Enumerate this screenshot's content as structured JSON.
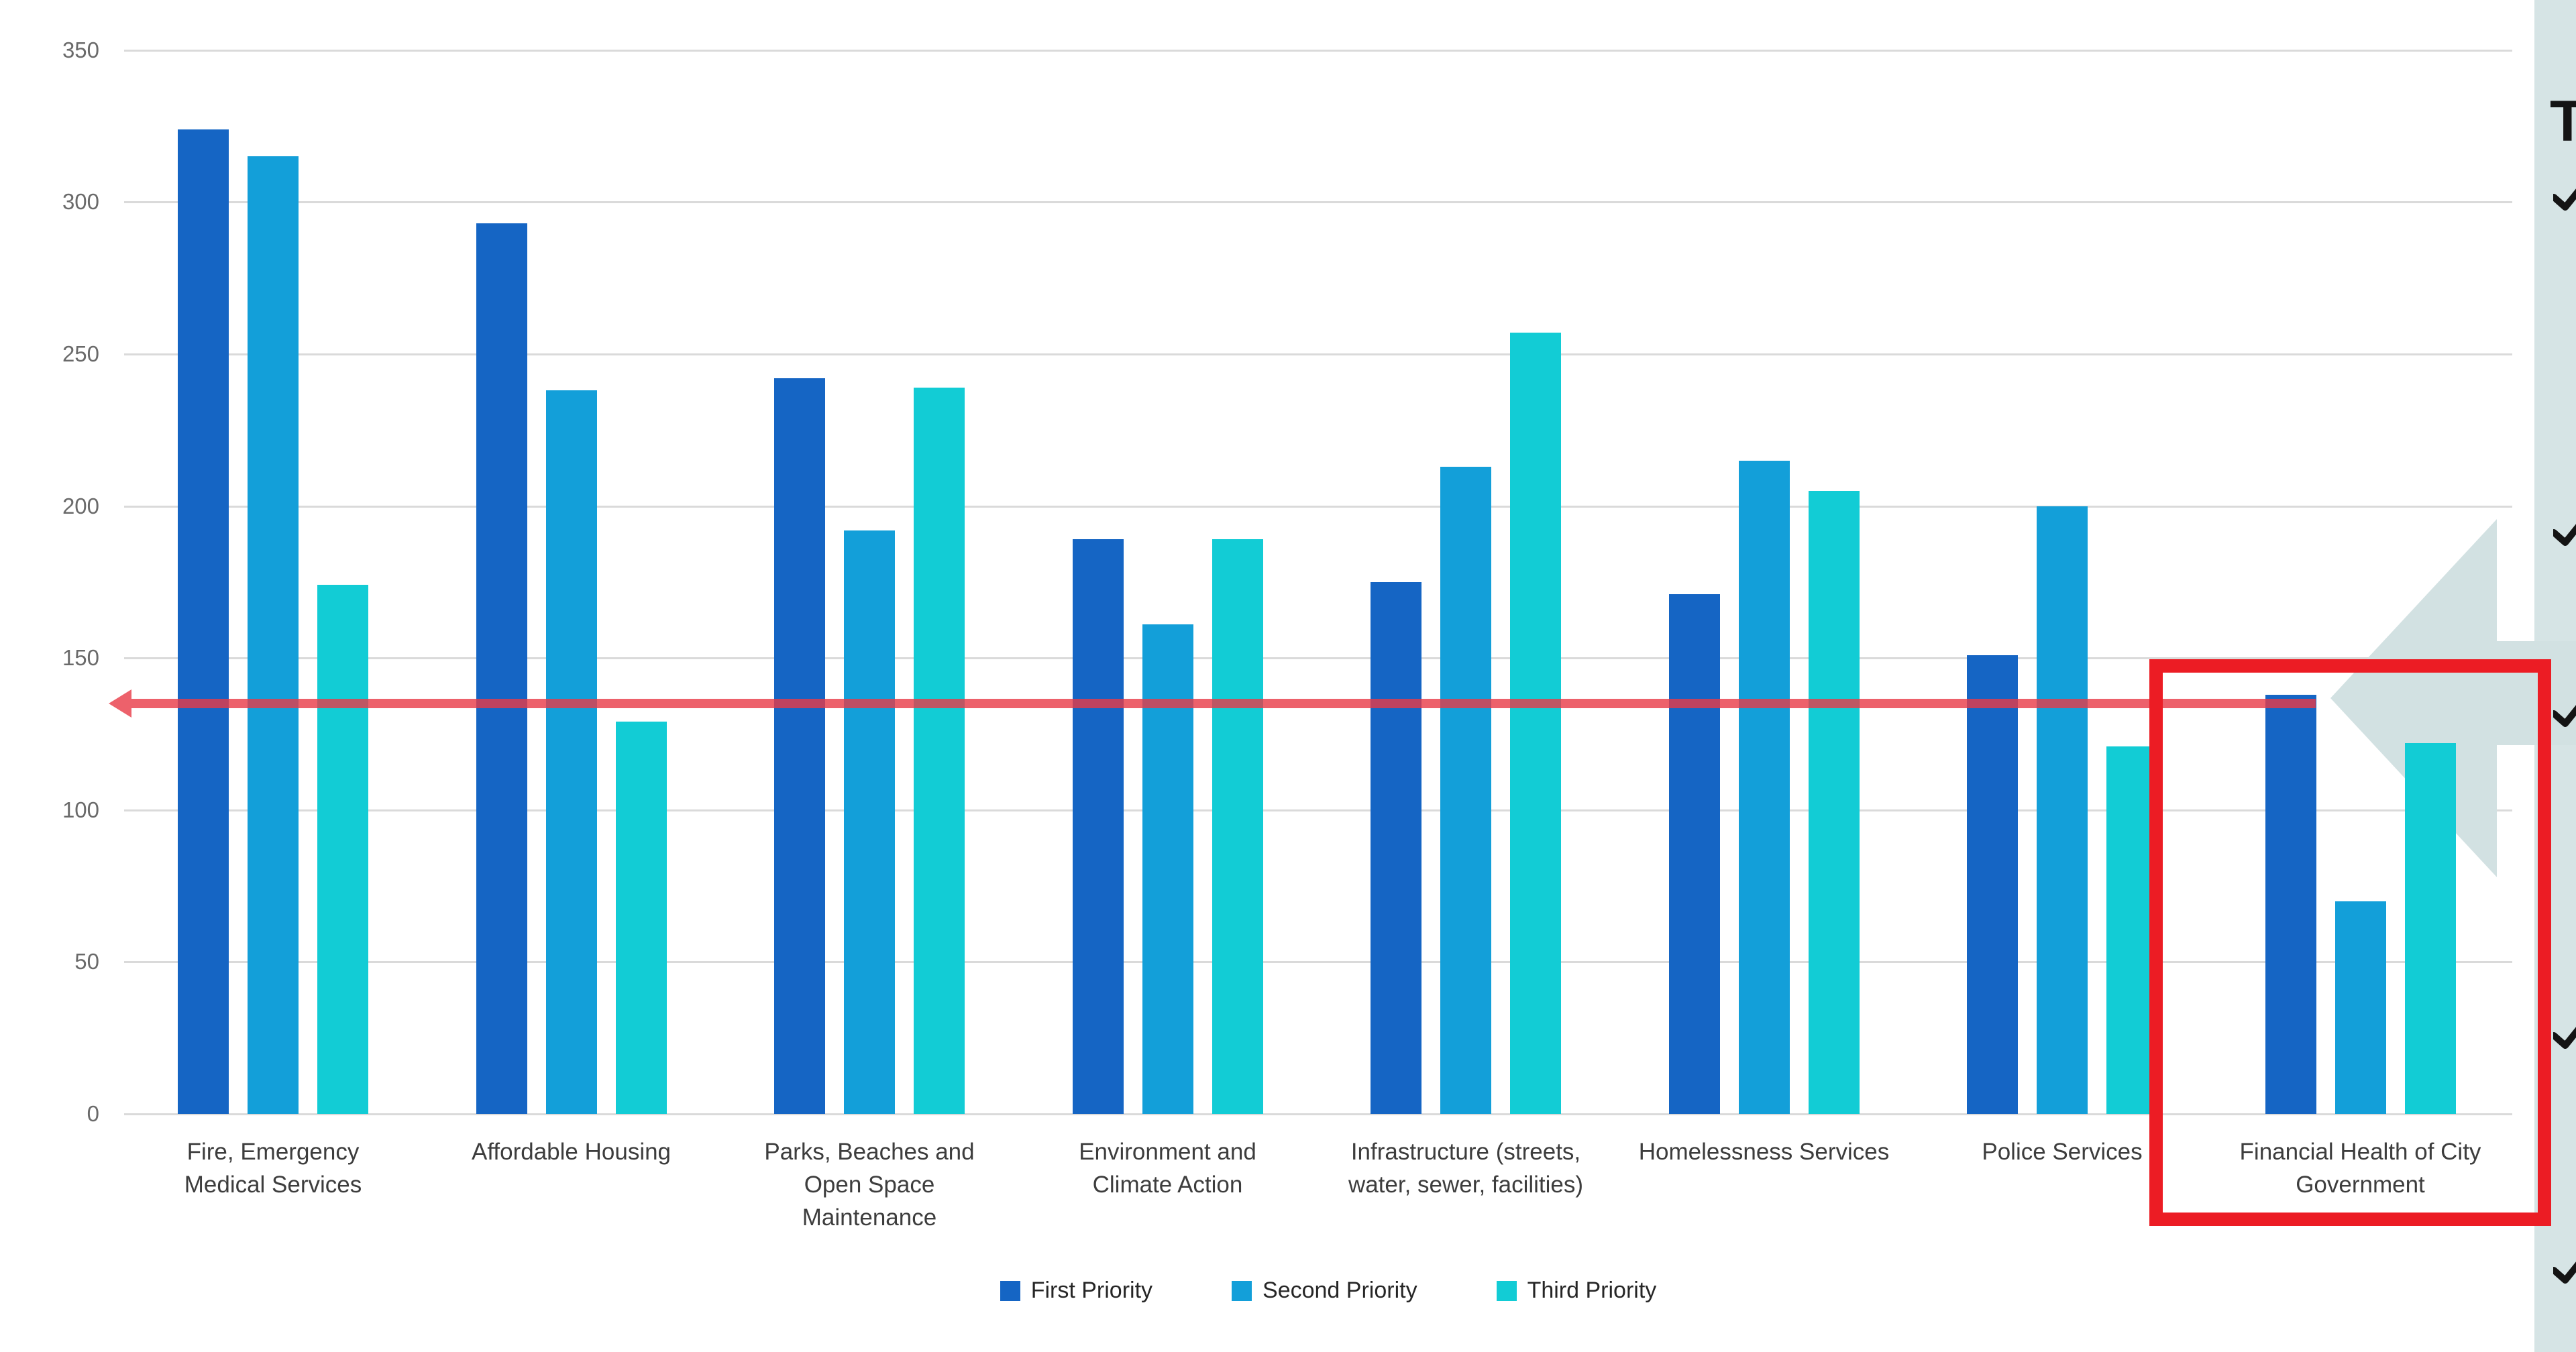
{
  "chart_data": {
    "type": "bar",
    "title": "",
    "xlabel": "",
    "ylabel": "",
    "ylim": [
      0,
      350
    ],
    "yticks": [
      0,
      50,
      100,
      150,
      200,
      250,
      300,
      350
    ],
    "grid": true,
    "legend_position": "bottom",
    "categories": [
      "Fire, Emergency Medical Services",
      "Affordable Housing",
      "Parks, Beaches and Open Space Maintenance",
      "Environment and Climate Action",
      "Infrastructure (streets, water, sewer, facilities)",
      "Homelessness Services",
      "Police Services",
      "Financial Health of City Government"
    ],
    "category_lines": [
      [
        "Fire, Emergency",
        "Medical Services"
      ],
      [
        "Affordable Housing"
      ],
      [
        "Parks, Beaches and",
        "Open Space",
        "Maintenance"
      ],
      [
        "Environment and",
        "Climate Action"
      ],
      [
        "Infrastructure (streets,",
        "water, sewer, facilities)"
      ],
      [
        "Homelessness Services"
      ],
      [
        "Police Services"
      ],
      [
        "Financial Health of City",
        "Government"
      ]
    ],
    "series": [
      {
        "name": "First Priority",
        "color": "#1565c4",
        "values": [
          324,
          293,
          242,
          189,
          175,
          171,
          151,
          138
        ]
      },
      {
        "name": "Second Priority",
        "color": "#139fd9",
        "values": [
          315,
          238,
          192,
          161,
          213,
          215,
          200,
          70
        ]
      },
      {
        "name": "Third Priority",
        "color": "#12ccd5",
        "values": [
          174,
          129,
          239,
          189,
          257,
          205,
          121,
          122
        ]
      }
    ],
    "reference_line": {
      "value": 135,
      "color": "#e83a46",
      "style": "solid-with-left-arrowhead"
    },
    "annotations": {
      "highlight_box": {
        "category": "Financial Health of City Government",
        "color": "#ec1c24"
      },
      "callout_arrow": {
        "direction": "left",
        "points_at": "Financial Health of City Government first-priority bar",
        "color": "#d2e1e2"
      }
    }
  },
  "colors": {
    "gridline": "#dadada",
    "tick_label": "#6a6a6a",
    "category_label": "#3d3d3d",
    "side_panel_background": "#d6e4e5",
    "bullet": "#141414"
  },
  "side_panel": {
    "partial_title_text": "T",
    "bullet_glyph": "chevron",
    "bullet_count": 5
  }
}
